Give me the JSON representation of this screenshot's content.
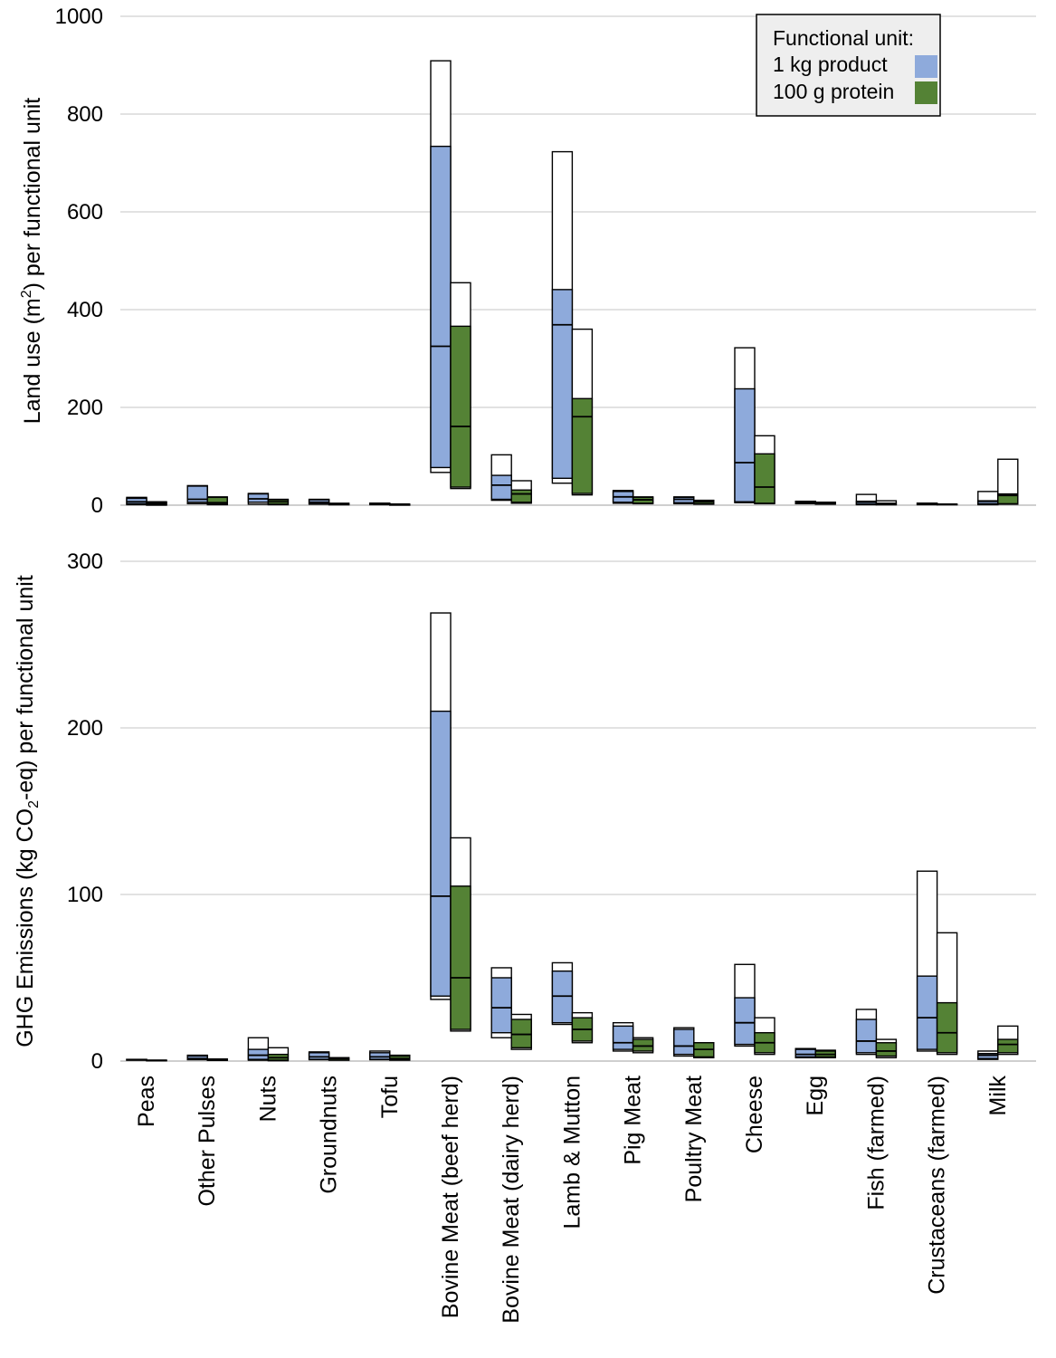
{
  "chart_data": [
    {
      "type": "bar",
      "ylabel_pre": "Land use (m",
      "ylabel_sup": "2",
      "ylabel_post": ") per functional unit",
      "ylim": [
        0,
        1000
      ],
      "yticks": [
        0,
        200,
        400,
        600,
        800,
        1000
      ],
      "grid": true,
      "categories": [
        "Peas",
        "Other Pulses",
        "Nuts",
        "Groundnuts",
        "Tofu",
        "Bovine Meat (beef herd)",
        "Bovine Meat (dairy herd)",
        "Lamb & Mutton",
        "Pig Meat",
        "Poultry Meat",
        "Cheese",
        "Egg",
        "Fish (farmed)",
        "Crustaceans (farmed)",
        "Milk"
      ],
      "series": [
        {
          "name": "1 kg product",
          "color": "#8eaadb",
          "min": [
            1,
            3,
            2,
            2,
            1,
            67,
            10,
            45,
            4,
            3,
            5,
            3,
            1,
            1,
            1
          ],
          "q1": [
            3,
            6,
            6,
            3,
            2,
            77,
            12,
            55,
            6,
            5,
            7,
            4,
            2,
            2,
            3
          ],
          "median": [
            7,
            12,
            13,
            6,
            3,
            325,
            41,
            369,
            17,
            12,
            87,
            6,
            6,
            3,
            8
          ],
          "q3": [
            14,
            39,
            23,
            11,
            4,
            734,
            61,
            441,
            28,
            16,
            238,
            7,
            8,
            4,
            9
          ],
          "max": [
            16,
            40,
            24,
            12,
            4,
            909,
            103,
            723,
            30,
            17,
            322,
            8,
            22,
            4,
            28
          ]
        },
        {
          "name": "100 g protein",
          "color": "#548235",
          "min": [
            0,
            1,
            1,
            1,
            0,
            34,
            4,
            21,
            3,
            2,
            3,
            2,
            1,
            1,
            2
          ],
          "q1": [
            1,
            2,
            2,
            1,
            1,
            37,
            6,
            24,
            4,
            3,
            4,
            3,
            1,
            1,
            3
          ],
          "median": [
            3,
            5,
            7,
            2,
            2,
            161,
            23,
            181,
            11,
            7,
            37,
            5,
            3,
            2,
            20
          ],
          "q3": [
            6,
            16,
            11,
            3,
            2,
            366,
            31,
            218,
            16,
            9,
            105,
            6,
            4,
            2,
            23
          ],
          "max": [
            7,
            17,
            12,
            4,
            2,
            455,
            50,
            360,
            17,
            10,
            142,
            6,
            9,
            2,
            94
          ]
        }
      ],
      "legend": {
        "title": "Functional unit:",
        "placement": "top-right"
      }
    },
    {
      "type": "bar",
      "ylabel_pre": "GHG Emissions (kg CO",
      "ylabel_sub": "2",
      "ylabel_post": "-eq) per functional unit",
      "ylim": [
        0,
        300
      ],
      "yticks": [
        0,
        100,
        200,
        300
      ],
      "grid": true,
      "categories": [
        "Peas",
        "Other Pulses",
        "Nuts",
        "Groundnuts",
        "Tofu",
        "Bovine Meat (beef herd)",
        "Bovine Meat (dairy herd)",
        "Lamb & Mutton",
        "Pig Meat",
        "Poultry Meat",
        "Cheese",
        "Egg",
        "Fish (farmed)",
        "Crustaceans (farmed)",
        "Milk"
      ],
      "series": [
        {
          "name": "1 kg product",
          "color": "#8eaadb",
          "min": [
            0.5,
            0.8,
            0.5,
            0.8,
            0.8,
            37,
            14,
            22,
            6,
            3,
            9,
            2,
            4,
            6,
            1
          ],
          "q1": [
            0.6,
            1,
            1,
            1,
            1,
            39,
            17,
            23,
            7,
            4,
            10,
            2.5,
            5,
            7,
            1.5
          ],
          "median": [
            0.8,
            1.5,
            3.5,
            2.5,
            2.5,
            99,
            32,
            39,
            11,
            9,
            23,
            4,
            12,
            26,
            3.5
          ],
          "q3": [
            1,
            3,
            7,
            5,
            5,
            210,
            50,
            54,
            21,
            19,
            38,
            7,
            25,
            51,
            4.5
          ],
          "max": [
            1,
            3.5,
            14,
            5.5,
            6,
            269,
            56,
            59,
            23,
            20,
            58,
            7.5,
            31,
            114,
            6
          ]
        },
        {
          "name": "100 g protein",
          "color": "#548235",
          "min": [
            0.2,
            0.4,
            0.2,
            0.5,
            0.5,
            18,
            7,
            11,
            5,
            2,
            4,
            2,
            2,
            4,
            4
          ],
          "q1": [
            0.3,
            0.5,
            0.5,
            0.6,
            0.7,
            19,
            8,
            12,
            6,
            2.5,
            5,
            2.5,
            3,
            5,
            5
          ],
          "median": [
            0.4,
            0.8,
            2,
            1.5,
            1.5,
            50,
            16,
            19,
            9,
            7,
            11,
            4,
            6,
            17,
            10
          ],
          "q3": [
            0.5,
            1.2,
            4,
            2,
            3,
            105,
            25,
            26,
            13,
            11,
            17,
            6,
            11,
            35,
            13
          ],
          "max": [
            0.5,
            1.2,
            8,
            2,
            3.5,
            134,
            28,
            29,
            14,
            11,
            26,
            6.5,
            13,
            77,
            21
          ]
        }
      ]
    }
  ],
  "legend": {
    "title": "Functional unit:",
    "items": [
      {
        "label": "1 kg product",
        "color": "#8eaadb"
      },
      {
        "label": "100 g protein",
        "color": "#548235"
      }
    ]
  },
  "colors": {
    "grid": "#d9d9d9",
    "axis": "#bfbfbf",
    "legend_bg": "#eeeeee"
  }
}
